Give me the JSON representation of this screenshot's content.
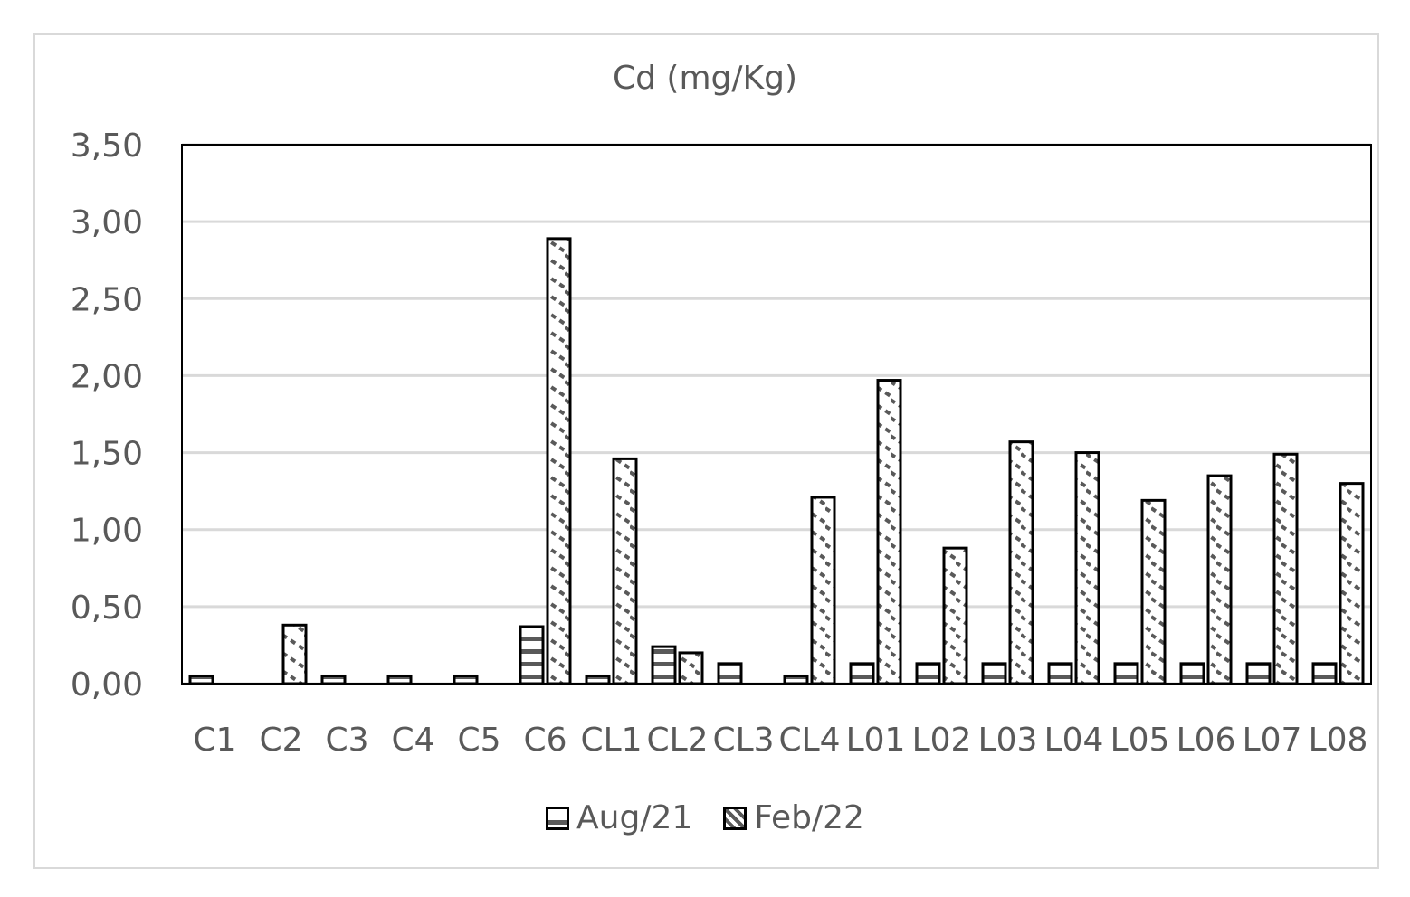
{
  "chart_data": {
    "type": "bar",
    "title": "Cd (mg/Kg)",
    "xlabel": "",
    "ylabel": "",
    "ylim": [
      0,
      3.5
    ],
    "ytick_step": 0.5,
    "ytick_labels": [
      "0,00",
      "0,50",
      "1,00",
      "1,50",
      "2,00",
      "2,50",
      "3,00",
      "3,50"
    ],
    "grid": true,
    "legend_position": "bottom",
    "categories": [
      "C1",
      "C2",
      "C3",
      "C4",
      "C5",
      "C6",
      "CL1",
      "CL2",
      "CL3",
      "CL4",
      "L01",
      "L02",
      "L03",
      "L04",
      "L05",
      "L06",
      "L07",
      "L08"
    ],
    "series": [
      {
        "name": "Aug/21",
        "pattern": "horizontal-stripes",
        "values": [
          0.05,
          0,
          0.05,
          0.05,
          0.05,
          0.37,
          0.05,
          0.24,
          0.13,
          0.05,
          0.13,
          0.13,
          0.13,
          0.13,
          0.13,
          0.13,
          0.13,
          0.13
        ]
      },
      {
        "name": "Feb/22",
        "pattern": "wave",
        "values": [
          0,
          0.38,
          0,
          0,
          0,
          2.89,
          1.46,
          0.2,
          0,
          1.21,
          1.97,
          0.88,
          1.57,
          1.5,
          1.19,
          1.35,
          1.49,
          1.3
        ]
      }
    ]
  },
  "colors": {
    "axis_text": "#595959",
    "gridline": "#d9d9d9",
    "bar_outline": "#000000",
    "pattern": "#595959",
    "frame": "#d9d9d9"
  }
}
